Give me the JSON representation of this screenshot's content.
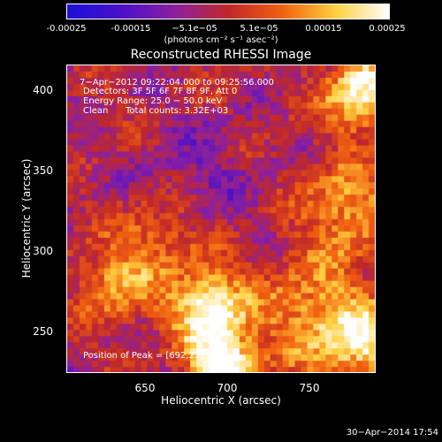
{
  "colorbar": {
    "ticks": [
      "-0.00025",
      "-0.00015",
      "−5.1e−05",
      "5.1e−05",
      "0.00015",
      "0.00025"
    ],
    "units": "(photons cm⁻² s⁻¹ asec⁻²)",
    "colors": [
      "#1a10d8",
      "#4a10c8",
      "#8a20a0",
      "#c02828",
      "#f06010",
      "#ffd040",
      "#ffffff"
    ]
  },
  "title": "Reconstructed RHESSI Image",
  "overlay": {
    "time_range": "7−Apr−2012 09:22:04.000 to 09:25:56.000",
    "detectors": "Detectors: 3F 5F 6F 7F 8F 9F, Att 0",
    "energy_range": "Energy Range: 25.0 − 50.0 keV",
    "algorithm": "Clean",
    "total_counts": "Total counts: 3.32E+03",
    "peak_position": "Position of Peak = [692,232]"
  },
  "axes": {
    "xlabel": "Heliocentric X (arcsec)",
    "ylabel": "Heliocentric Y (arcsec)",
    "xticks": [
      "650",
      "700",
      "750"
    ],
    "yticks": [
      "400",
      "350",
      "300",
      "250"
    ],
    "xlim": [
      602,
      790
    ],
    "ylim": [
      220,
      412
    ]
  },
  "footer": "30−Apr−2014 17:54"
}
